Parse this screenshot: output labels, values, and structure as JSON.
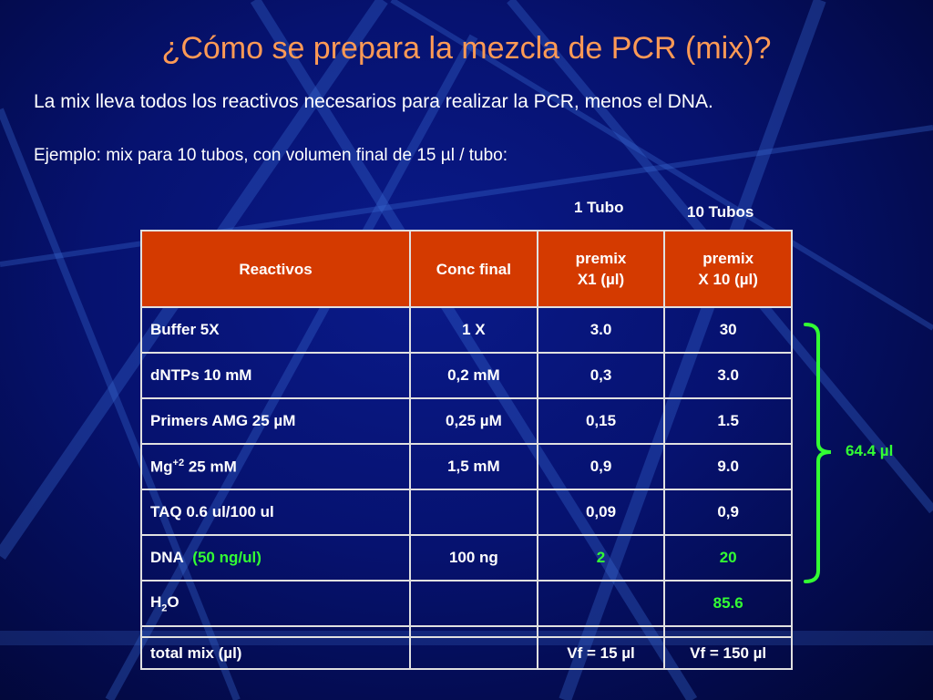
{
  "title": "¿Cómo se prepara la mezcla de PCR (mix)?",
  "intro": "La mix lleva todos los reactivos necesarios para realizar la PCR, menos el DNA.",
  "example": "Ejemplo: mix para 10 tubos, con volumen final de 15 µl / tubo:",
  "col_labels": {
    "one_tube": "1 Tubo",
    "ten_tubes": "10 Tubos"
  },
  "table": {
    "headers": {
      "reactivos": "Reactivos",
      "conc": "Conc final",
      "premix1_line1": "premix",
      "premix1_line2": "X1 (µl)",
      "premix10_line1": "premix",
      "premix10_line2": "X 10 (µl)"
    },
    "rows": [
      {
        "reagent": "Buffer 5X",
        "conc": "1 X",
        "p1": "3.0",
        "p10": "30"
      },
      {
        "reagent": "dNTPs 10 mM",
        "conc": "0,2 mM",
        "p1": "0,3",
        "p10": "3.0"
      },
      {
        "reagent": "Primers AMG  25 µM",
        "conc": "0,25 µM",
        "p1": "0,15",
        "p10": "1.5"
      },
      {
        "reagent_base": "Mg",
        "reagent_sup": "+2",
        "reagent_rest": " 25 mM",
        "conc": "1,5 mM",
        "p1": "0,9",
        "p10": "9.0"
      },
      {
        "reagent": "TAQ  0.6 ul/100 ul",
        "conc": "",
        "p1": "0,09",
        "p10": "0,9"
      },
      {
        "reagent": "DNA",
        "reagent_note": "(50 ng/ul)",
        "conc": "100 ng",
        "p1": "2",
        "p10": "20"
      },
      {
        "reagent_base": "H",
        "reagent_sub": "2",
        "reagent_rest": "O",
        "conc": "",
        "p1": "",
        "p10": "85.6"
      },
      {
        "reagent": "",
        "conc": "",
        "p1": "",
        "p10": ""
      },
      {
        "reagent": "total mix (µl)",
        "conc": "",
        "p1": "Vf = 15 µl",
        "p10": "Vf = 150 µl"
      }
    ]
  },
  "brace_label": "64.4 µl",
  "colors": {
    "title": "#ff9a55",
    "header_bg": "#d43a00",
    "highlight": "#33ff33"
  }
}
